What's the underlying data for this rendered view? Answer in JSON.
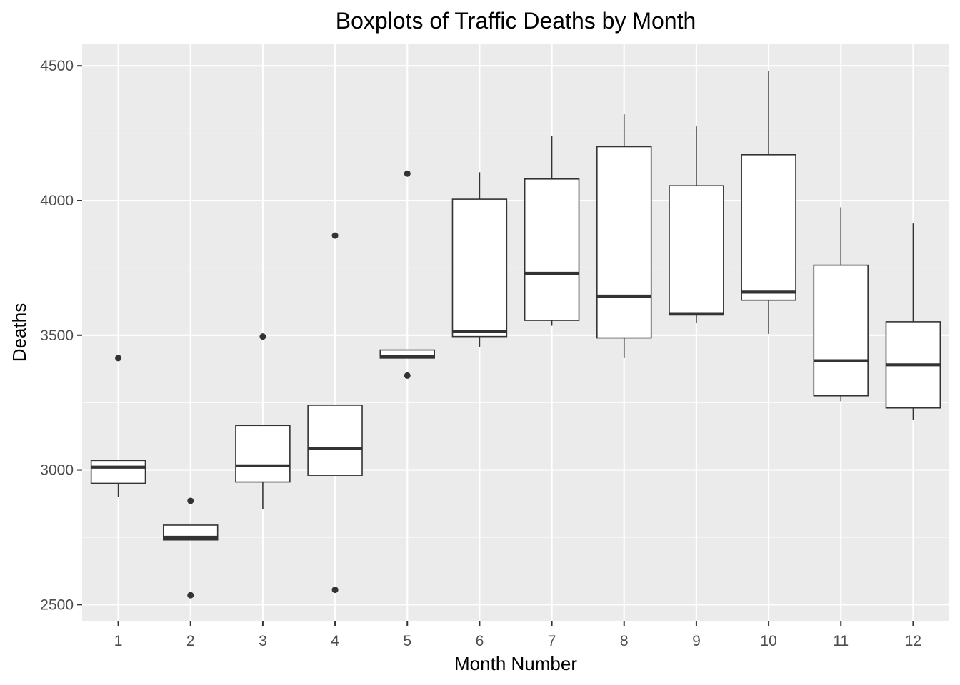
{
  "chart_data": {
    "type": "boxplot",
    "title": "Boxplots of Traffic Deaths by Month",
    "xlabel": "Month Number",
    "ylabel": "Deaths",
    "ylim": [
      2440,
      4580
    ],
    "y_ticks": [
      2500,
      3000,
      3500,
      4000,
      4500
    ],
    "grid": true,
    "categories": [
      "1",
      "2",
      "3",
      "4",
      "5",
      "6",
      "7",
      "8",
      "9",
      "10",
      "11",
      "12"
    ],
    "boxes": [
      {
        "category": "1",
        "whisker_low": 2900,
        "q1": 2950,
        "median": 3010,
        "q3": 3035,
        "whisker_high": 3035,
        "outliers": [
          3415
        ]
      },
      {
        "category": "2",
        "whisker_low": 2740,
        "q1": 2740,
        "median": 2750,
        "q3": 2795,
        "whisker_high": 2795,
        "outliers": [
          2535,
          2885
        ]
      },
      {
        "category": "3",
        "whisker_low": 2855,
        "q1": 2955,
        "median": 3015,
        "q3": 3165,
        "whisker_high": 3165,
        "outliers": [
          3495
        ]
      },
      {
        "category": "4",
        "whisker_low": 2980,
        "q1": 2980,
        "median": 3080,
        "q3": 3240,
        "whisker_high": 3240,
        "outliers": [
          2555,
          3870
        ]
      },
      {
        "category": "5",
        "whisker_low": 3415,
        "q1": 3415,
        "median": 3420,
        "q3": 3445,
        "whisker_high": 3445,
        "outliers": [
          3350,
          4100
        ]
      },
      {
        "category": "6",
        "whisker_low": 3455,
        "q1": 3495,
        "median": 3515,
        "q3": 4005,
        "whisker_high": 4105,
        "outliers": []
      },
      {
        "category": "7",
        "whisker_low": 3535,
        "q1": 3555,
        "median": 3730,
        "q3": 4080,
        "whisker_high": 4240,
        "outliers": []
      },
      {
        "category": "8",
        "whisker_low": 3415,
        "q1": 3490,
        "median": 3645,
        "q3": 4200,
        "whisker_high": 4320,
        "outliers": []
      },
      {
        "category": "9",
        "whisker_low": 3545,
        "q1": 3575,
        "median": 3580,
        "q3": 4055,
        "whisker_high": 4275,
        "outliers": []
      },
      {
        "category": "10",
        "whisker_low": 3505,
        "q1": 3630,
        "median": 3660,
        "q3": 4170,
        "whisker_high": 4480,
        "outliers": []
      },
      {
        "category": "11",
        "whisker_low": 3255,
        "q1": 3275,
        "median": 3405,
        "q3": 3760,
        "whisker_high": 3975,
        "outliers": []
      },
      {
        "category": "12",
        "whisker_low": 3185,
        "q1": 3230,
        "median": 3390,
        "q3": 3550,
        "whisker_high": 3915,
        "outliers": []
      }
    ],
    "colors": {
      "panel_background": "#ebebeb",
      "grid_major": "#ffffff",
      "box_fill": "#ffffff",
      "box_stroke": "#333333",
      "tick_label": "#4d4d4d",
      "tick_mark": "#333333"
    }
  }
}
